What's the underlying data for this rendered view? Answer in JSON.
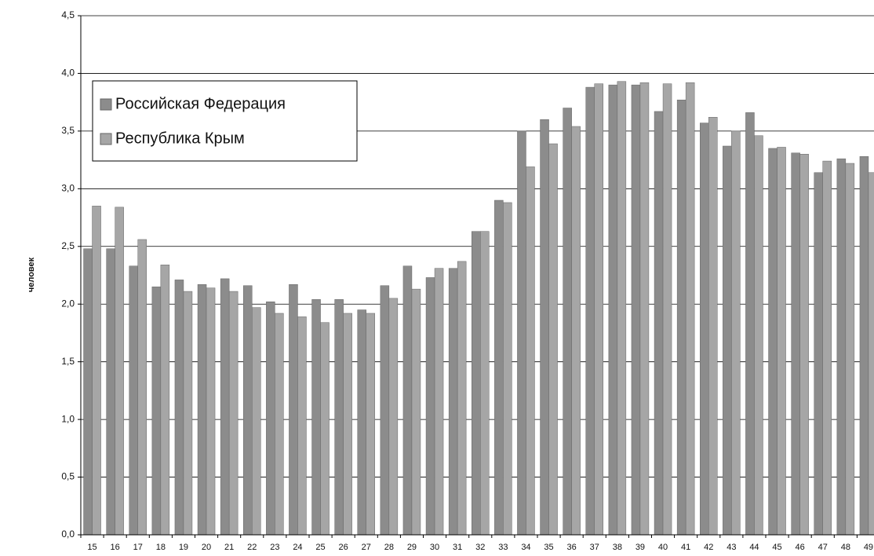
{
  "chart_data": {
    "type": "bar",
    "ylabel": "человек",
    "categories": [
      "15",
      "16",
      "17",
      "18",
      "19",
      "20",
      "21",
      "22",
      "23",
      "24",
      "25",
      "26",
      "27",
      "28",
      "29",
      "30",
      "31",
      "32",
      "33",
      "34",
      "35",
      "36",
      "37",
      "38",
      "39",
      "40",
      "41",
      "42",
      "43",
      "44",
      "45",
      "46",
      "47",
      "48",
      "49"
    ],
    "series": [
      {
        "name": "Российская Федерация",
        "color": "#8c8c8c",
        "values": [
          2.48,
          2.48,
          2.33,
          2.15,
          2.21,
          2.17,
          2.22,
          2.16,
          2.02,
          2.17,
          2.04,
          2.04,
          1.95,
          2.16,
          2.33,
          2.23,
          2.31,
          2.63,
          2.9,
          3.5,
          3.6,
          3.7,
          3.88,
          3.9,
          3.9,
          3.67,
          3.77,
          3.57,
          3.37,
          3.66,
          3.35,
          3.31,
          3.14,
          3.26,
          3.28
        ]
      },
      {
        "name": "Республика Крым",
        "color": "#a6a6a6",
        "values": [
          2.85,
          2.84,
          2.56,
          2.34,
          2.11,
          2.14,
          2.11,
          1.97,
          1.92,
          1.89,
          1.84,
          1.92,
          1.92,
          2.05,
          2.13,
          2.31,
          2.37,
          2.63,
          2.88,
          3.19,
          3.39,
          3.54,
          3.91,
          3.93,
          3.92,
          3.91,
          3.92,
          3.62,
          3.5,
          3.46,
          3.36,
          3.3,
          3.24,
          3.22,
          3.14
        ]
      }
    ],
    "ylim": [
      0,
      4.5
    ],
    "yticks": [
      {
        "value": 0,
        "label": "0,0"
      },
      {
        "value": 0.5,
        "label": "0,5"
      },
      {
        "value": 1,
        "label": "1,0"
      },
      {
        "value": 1.5,
        "label": "1,5"
      },
      {
        "value": 2,
        "label": "2,0"
      },
      {
        "value": 2.5,
        "label": "2,5"
      },
      {
        "value": 3,
        "label": "3,0"
      },
      {
        "value": 3.5,
        "label": "3,5"
      },
      {
        "value": 4,
        "label": "4,0"
      },
      {
        "value": 4.5,
        "label": "4,5"
      }
    ],
    "grid": true
  }
}
